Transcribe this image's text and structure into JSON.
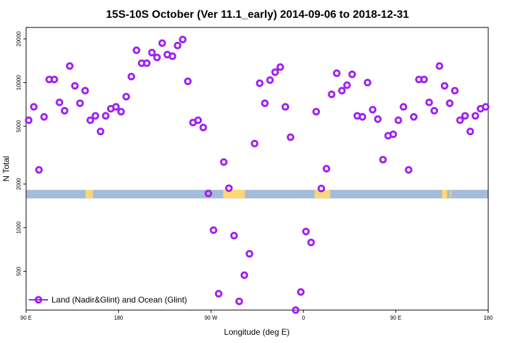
{
  "chart_data": {
    "type": "scatter",
    "title": "15S-10S October (Ver 11.1_early)   2014-09-06 to 2018-12-31",
    "xlabel": "Longitude (deg E)",
    "ylabel": "N Total",
    "x_scale": "linear",
    "y_scale": "log",
    "xlim": [
      90,
      540
    ],
    "ylim": [
      270,
      24000
    ],
    "x_ticks": [
      {
        "value": 90,
        "label": "90 E"
      },
      {
        "value": 180,
        "label": "180"
      },
      {
        "value": 270,
        "label": "90 W"
      },
      {
        "value": 360,
        "label": "0"
      },
      {
        "value": 450,
        "label": "90 E"
      },
      {
        "value": 540,
        "label": "180"
      }
    ],
    "y_ticks": [
      {
        "value": 500,
        "label": "500"
      },
      {
        "value": 1000,
        "label": "1000"
      },
      {
        "value": 2000,
        "label": "2000"
      },
      {
        "value": 5000,
        "label": "5000"
      },
      {
        "value": 10000,
        "label": "10000"
      },
      {
        "value": 20000,
        "label": "20000"
      }
    ],
    "grid": false,
    "legend": {
      "position": "bottom-left",
      "entries": [
        "Land (Nadir&Glint) and Ocean (Glint)"
      ]
    },
    "series": [
      {
        "name": "Land (Nadir&Glint) and Ocean (Glint)",
        "color": "#a020f0",
        "marker": "open-circle",
        "points": [
          [
            92.5,
            5500
          ],
          [
            97.5,
            6800
          ],
          [
            102.5,
            2500
          ],
          [
            107.5,
            5800
          ],
          [
            112.5,
            10500
          ],
          [
            117.5,
            10500
          ],
          [
            122.5,
            7300
          ],
          [
            127.5,
            6400
          ],
          [
            132.5,
            13000
          ],
          [
            137.5,
            9500
          ],
          [
            142.5,
            7200
          ],
          [
            147.5,
            8800
          ],
          [
            152.5,
            5500
          ],
          [
            157.5,
            5900
          ],
          [
            162.5,
            4600
          ],
          [
            167.5,
            5900
          ],
          [
            172.5,
            6600
          ],
          [
            177.5,
            6800
          ],
          [
            182.5,
            6300
          ],
          [
            187.5,
            8000
          ],
          [
            192.5,
            11000
          ],
          [
            197.5,
            16700
          ],
          [
            202.5,
            13600
          ],
          [
            207.5,
            13600
          ],
          [
            212.5,
            16100
          ],
          [
            217.5,
            14900
          ],
          [
            222.5,
            18700
          ],
          [
            227.5,
            15600
          ],
          [
            232.5,
            15200
          ],
          [
            237.5,
            18000
          ],
          [
            242.5,
            19800
          ],
          [
            247.5,
            10200
          ],
          [
            252.5,
            5300
          ],
          [
            257.5,
            5500
          ],
          [
            262.5,
            4900
          ],
          [
            267.5,
            1720
          ],
          [
            272.5,
            960
          ],
          [
            277.5,
            350
          ],
          [
            282.5,
            2830
          ],
          [
            287.5,
            1870
          ],
          [
            292.5,
            880
          ],
          [
            297.5,
            310
          ],
          [
            302.5,
            470
          ],
          [
            307.5,
            660
          ],
          [
            312.5,
            3800
          ],
          [
            317.5,
            9900
          ],
          [
            322.5,
            7200
          ],
          [
            327.5,
            10400
          ],
          [
            332.5,
            11800
          ],
          [
            337.5,
            12800
          ],
          [
            342.5,
            6800
          ],
          [
            347.5,
            4200
          ],
          [
            352.5,
            270
          ],
          [
            357.5,
            360
          ],
          [
            362.5,
            940
          ],
          [
            367.5,
            790
          ],
          [
            372.5,
            6300
          ],
          [
            377.5,
            1860
          ],
          [
            382.5,
            2550
          ],
          [
            387.5,
            8300
          ],
          [
            392.5,
            11600
          ],
          [
            397.5,
            8800
          ],
          [
            402.5,
            9600
          ],
          [
            407.5,
            11400
          ],
          [
            412.5,
            5900
          ],
          [
            417.5,
            5800
          ],
          [
            422.5,
            10000
          ],
          [
            427.5,
            6500
          ],
          [
            432.5,
            5600
          ],
          [
            437.5,
            2940
          ],
          [
            442.5,
            4300
          ],
          [
            447.5,
            4400
          ],
          [
            452.5,
            5500
          ],
          [
            457.5,
            6800
          ],
          [
            462.5,
            2500
          ],
          [
            467.5,
            5800
          ],
          [
            472.5,
            10500
          ],
          [
            477.5,
            10500
          ],
          [
            482.5,
            7300
          ],
          [
            487.5,
            6400
          ],
          [
            492.5,
            13000
          ],
          [
            497.5,
            9500
          ],
          [
            502.5,
            7200
          ],
          [
            507.5,
            8800
          ],
          [
            512.5,
            5500
          ],
          [
            517.5,
            5900
          ],
          [
            522.5,
            4600
          ],
          [
            527.5,
            5900
          ],
          [
            532.5,
            6600
          ],
          [
            537.5,
            6800
          ]
        ]
      }
    ],
    "inset_map": {
      "description": "latitude band 15S-10S: land vs ocean",
      "band_y_range": [
        1590,
        1820
      ],
      "ocean_color": "#a3bcd9",
      "land_color": "#fbd776",
      "land_segments_lon": [
        [
          148,
          155
        ],
        [
          282,
          303
        ],
        [
          371,
          386
        ],
        [
          495,
          500
        ],
        [
          503,
          504
        ]
      ]
    }
  }
}
